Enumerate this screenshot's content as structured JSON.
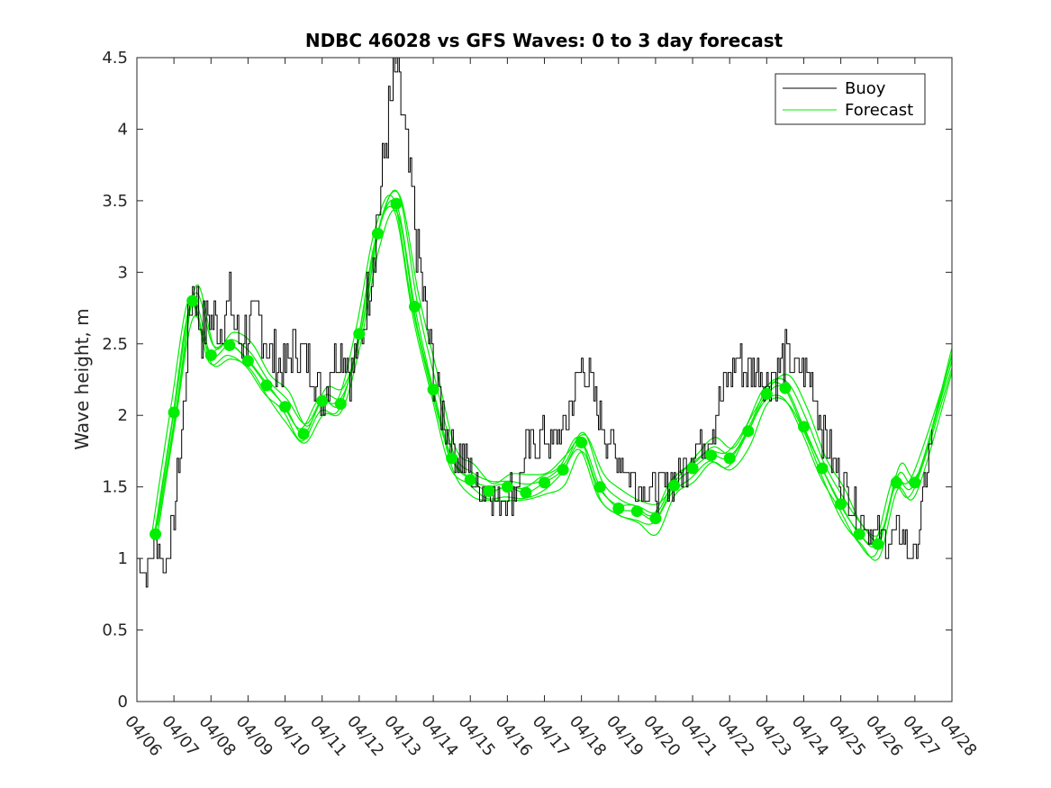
{
  "chart_data": {
    "type": "line",
    "title": "NDBC 46028 vs GFS Waves: 0 to 3 day forecast",
    "xlabel": "",
    "ylabel": "Wave height, m",
    "xlim": [
      "04/06",
      "04/28"
    ],
    "ylim": [
      0,
      4.5
    ],
    "x_ticks": [
      "04/06",
      "04/07",
      "04/08",
      "04/09",
      "04/10",
      "04/11",
      "04/12",
      "04/13",
      "04/14",
      "04/15",
      "04/16",
      "04/17",
      "04/18",
      "04/19",
      "04/20",
      "04/21",
      "04/22",
      "04/23",
      "04/24",
      "04/25",
      "04/26",
      "04/27",
      "04/28"
    ],
    "y_ticks": [
      "0",
      "0.5",
      "1",
      "1.5",
      "2",
      "2.5",
      "3",
      "3.5",
      "4",
      "4.5"
    ],
    "legend": {
      "position": "top-right",
      "entries": [
        "Buoy",
        "Forecast"
      ]
    },
    "colors": {
      "buoy": "#000000",
      "forecast": "#00ee00"
    },
    "grid": false,
    "series": [
      {
        "name": "Buoy",
        "x": [
          "04/06 00:00",
          "04/06 06:00",
          "04/06 12:00",
          "04/06 18:00",
          "04/07 00:00",
          "04/07 06:00",
          "04/07 09:00",
          "04/07 12:00",
          "04/07 18:00",
          "04/08 00:00",
          "04/08 06:00",
          "04/08 12:00",
          "04/08 18:00",
          "04/09 00:00",
          "04/09 06:00",
          "04/09 12:00",
          "04/09 18:00",
          "04/10 00:00",
          "04/10 06:00",
          "04/10 12:00",
          "04/10 18:00",
          "04/11 00:00",
          "04/11 06:00",
          "04/11 12:00",
          "04/11 18:00",
          "04/12 00:00",
          "04/12 06:00",
          "04/12 12:00",
          "04/12 18:00",
          "04/13 00:00",
          "04/13 06:00",
          "04/13 12:00",
          "04/13 18:00",
          "04/14 00:00",
          "04/14 06:00",
          "04/14 12:00",
          "04/14 18:00",
          "04/15 00:00",
          "04/15 06:00",
          "04/15 12:00",
          "04/15 18:00",
          "04/16 00:00",
          "04/16 06:00",
          "04/16 12:00",
          "04/16 18:00",
          "04/17 00:00",
          "04/17 06:00",
          "04/17 12:00",
          "04/17 18:00",
          "04/18 00:00",
          "04/18 06:00",
          "04/18 12:00",
          "04/18 18:00",
          "04/19 00:00",
          "04/19 06:00",
          "04/19 12:00",
          "04/19 18:00",
          "04/20 00:00",
          "04/20 06:00",
          "04/20 12:00",
          "04/20 18:00",
          "04/21 00:00",
          "04/21 06:00",
          "04/21 12:00",
          "04/21 18:00",
          "04/22 00:00",
          "04/22 06:00",
          "04/22 12:00",
          "04/22 18:00",
          "04/23 00:00",
          "04/23 06:00",
          "04/23 12:00",
          "04/23 18:00",
          "04/24 00:00",
          "04/24 06:00",
          "04/24 12:00",
          "04/24 18:00",
          "04/25 00:00",
          "04/25 06:00",
          "04/25 12:00",
          "04/25 18:00",
          "04/26 00:00",
          "04/26 06:00",
          "04/26 12:00",
          "04/26 18:00",
          "04/27 00:00",
          "04/27 06:00",
          "04/27 12:00"
        ],
        "values": [
          1.05,
          0.85,
          1.15,
          0.9,
          1.3,
          2.0,
          2.6,
          2.9,
          2.6,
          2.7,
          2.6,
          2.8,
          2.5,
          2.6,
          2.7,
          2.5,
          2.4,
          2.3,
          2.5,
          2.4,
          2.3,
          2.1,
          2.4,
          2.5,
          2.3,
          2.5,
          2.9,
          3.4,
          4.0,
          4.4,
          3.9,
          3.3,
          2.8,
          2.3,
          2.0,
          1.8,
          1.7,
          1.6,
          1.5,
          1.5,
          1.4,
          1.45,
          1.5,
          1.75,
          1.8,
          1.85,
          1.8,
          1.9,
          2.1,
          2.35,
          2.2,
          2.0,
          1.8,
          1.7,
          1.6,
          1.55,
          1.5,
          1.45,
          1.5,
          1.55,
          1.6,
          1.75,
          1.8,
          1.9,
          2.1,
          2.3,
          2.4,
          2.3,
          2.35,
          2.25,
          2.3,
          2.4,
          2.3,
          2.3,
          2.2,
          1.9,
          1.7,
          1.55,
          1.45,
          1.3,
          1.2,
          1.15,
          1.1,
          1.2,
          1.1,
          1.0,
          1.5,
          1.9
        ]
      },
      {
        "name": "Forecast",
        "x": [
          "04/06 12:00",
          "04/07 00:00",
          "04/07 12:00",
          "04/08 00:00",
          "04/08 12:00",
          "04/09 00:00",
          "04/09 12:00",
          "04/10 00:00",
          "04/10 12:00",
          "04/11 00:00",
          "04/11 12:00",
          "04/12 00:00",
          "04/12 12:00",
          "04/13 00:00",
          "04/13 12:00",
          "04/14 00:00",
          "04/14 12:00",
          "04/15 00:00",
          "04/15 12:00",
          "04/16 00:00",
          "04/16 12:00",
          "04/17 00:00",
          "04/17 12:00",
          "04/18 00:00",
          "04/18 12:00",
          "04/19 00:00",
          "04/19 12:00",
          "04/20 00:00",
          "04/20 12:00",
          "04/21 00:00",
          "04/21 12:00",
          "04/22 00:00",
          "04/22 12:00",
          "04/23 00:00",
          "04/23 12:00",
          "04/24 00:00",
          "04/24 12:00",
          "04/25 00:00",
          "04/25 12:00",
          "04/26 00:00",
          "04/26 12:00",
          "04/27 00:00"
        ],
        "values": [
          1.17,
          2.02,
          2.8,
          2.42,
          2.49,
          2.38,
          2.21,
          2.06,
          1.87,
          2.1,
          2.08,
          2.57,
          3.27,
          3.48,
          2.76,
          2.18,
          1.7,
          1.55,
          1.47,
          1.5,
          1.46,
          1.53,
          1.62,
          1.81,
          1.5,
          1.35,
          1.33,
          1.28,
          1.51,
          1.63,
          1.72,
          1.7,
          1.89,
          2.15,
          2.19,
          1.92,
          1.63,
          1.38,
          1.17,
          1.1,
          1.53,
          1.53
        ]
      }
    ]
  }
}
